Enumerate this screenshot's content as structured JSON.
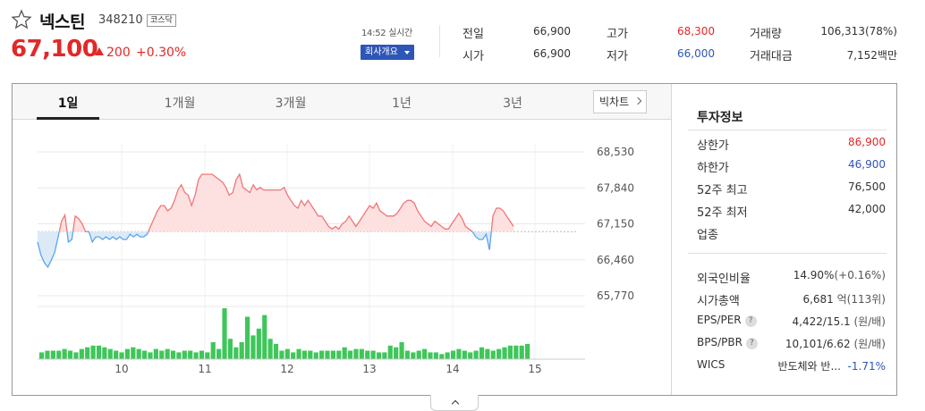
{
  "stock": {
    "name": "넥스틴",
    "code": "348210",
    "market": "코스닥",
    "price": "67,100",
    "change": "200",
    "change_rate": "+0.30%",
    "time_label": "14:52 실시간",
    "company_button": "회사개요"
  },
  "stats": {
    "prev_close_label": "전일",
    "prev_close": "66,900",
    "open_label": "시가",
    "open": "66,900",
    "high_label": "고가",
    "high": "68,300",
    "low_label": "저가",
    "low": "66,000",
    "volume_label": "거래량",
    "volume": "106,313(78%)",
    "amount_label": "거래대금",
    "amount": "7,152백만"
  },
  "tabs": [
    "1일",
    "1개월",
    "3개월",
    "1년",
    "3년"
  ],
  "bigchart_label": "빅차트",
  "colors": {
    "up": "#e22828",
    "down": "#2e56b8",
    "volume": "#3fc65a",
    "up_fill": "#fde1e1",
    "down_fill": "#dceaf8",
    "down_line": "#5aa5e8",
    "up_line": "#f07676"
  },
  "chart_data": {
    "type": "line",
    "baseline": 67000,
    "y_ticks": [
      "68,530",
      "67,840",
      "67,150",
      "66,460",
      "65,770"
    ],
    "ylim": [
      65770,
      68530
    ],
    "x_ticks": [
      "10",
      "11",
      "12",
      "13",
      "14",
      "15"
    ],
    "price": [
      66800,
      66550,
      66400,
      66320,
      66450,
      66600,
      66900,
      67200,
      67320,
      66800,
      66850,
      67300,
      67250,
      67150,
      67000,
      67000,
      66800,
      66900,
      66900,
      66850,
      66900,
      66850,
      66900,
      66850,
      66900,
      66850,
      66850,
      66950,
      66900,
      66950,
      66900,
      66900,
      66950,
      67100,
      67250,
      67400,
      67500,
      67500,
      67400,
      67450,
      67600,
      67800,
      67900,
      67750,
      67700,
      67500,
      67700,
      68000,
      68100,
      68100,
      68100,
      68100,
      68050,
      68000,
      67950,
      67850,
      67700,
      67750,
      68000,
      68100,
      67850,
      67800,
      67750,
      67900,
      67800,
      67850,
      67800,
      67800,
      67800,
      67800,
      67800,
      67800,
      67850,
      67700,
      67600,
      67500,
      67450,
      67600,
      67500,
      67600,
      67500,
      67400,
      67300,
      67300,
      67200,
      67100,
      67050,
      67100,
      67050,
      67150,
      67200,
      67300,
      67200,
      67100,
      67200,
      67300,
      67400,
      67500,
      67450,
      67550,
      67400,
      67350,
      67300,
      67300,
      67300,
      67350,
      67450,
      67550,
      67600,
      67600,
      67550,
      67400,
      67300,
      67200,
      67150,
      67100,
      67200,
      67150,
      67100,
      67050,
      67050,
      67150,
      67250,
      67350,
      67250,
      67100,
      67050,
      67000,
      66900,
      66850,
      66850,
      66950,
      66650,
      67300,
      67450,
      67450,
      67400,
      67300,
      67200,
      67100
    ],
    "volume": [
      4,
      5,
      5,
      5,
      6,
      5,
      4,
      6,
      7,
      8,
      8,
      7,
      6,
      5,
      4,
      6,
      7,
      6,
      5,
      4,
      6,
      5,
      6,
      5,
      4,
      5,
      5,
      4,
      5,
      4,
      10,
      6,
      30,
      12,
      7,
      10,
      25,
      14,
      18,
      26,
      12,
      9,
      5,
      6,
      4,
      6,
      5,
      5,
      4,
      5,
      5,
      5,
      5,
      7,
      5,
      6,
      6,
      5,
      5,
      4,
      4,
      8,
      7,
      10,
      5,
      4,
      5,
      6,
      4,
      4,
      3,
      4,
      5,
      6,
      5,
      4,
      5,
      7,
      6,
      5,
      6,
      7,
      8,
      8,
      8,
      9
    ],
    "volume_x_ticks": [
      "10",
      "11",
      "12",
      "13",
      "14",
      "15"
    ]
  },
  "invest": {
    "title": "투자정보",
    "upper_limit_label": "상한가",
    "upper_limit": "86,900",
    "lower_limit_label": "하한가",
    "lower_limit": "46,900",
    "high52_label": "52주 최고",
    "high52": "76,500",
    "low52_label": "52주 최저",
    "low52": "42,000",
    "sector_label": "업종",
    "foreign_label": "외국인비율",
    "foreign": "14.90%",
    "foreign_change": "(+0.16%)",
    "mcap_label": "시가총액",
    "mcap": "6,681",
    "mcap_unit": "억(113위)",
    "eps_label": "EPS/PER",
    "eps": "4,422/15.1",
    "eps_unit": "(원/배)",
    "bps_label": "BPS/PBR",
    "bps": "10,101/6.62",
    "bps_unit": "(원/배)",
    "wics_label": "WICS",
    "wics": "반도체와 반...",
    "wics_rate": "-1.71%"
  }
}
